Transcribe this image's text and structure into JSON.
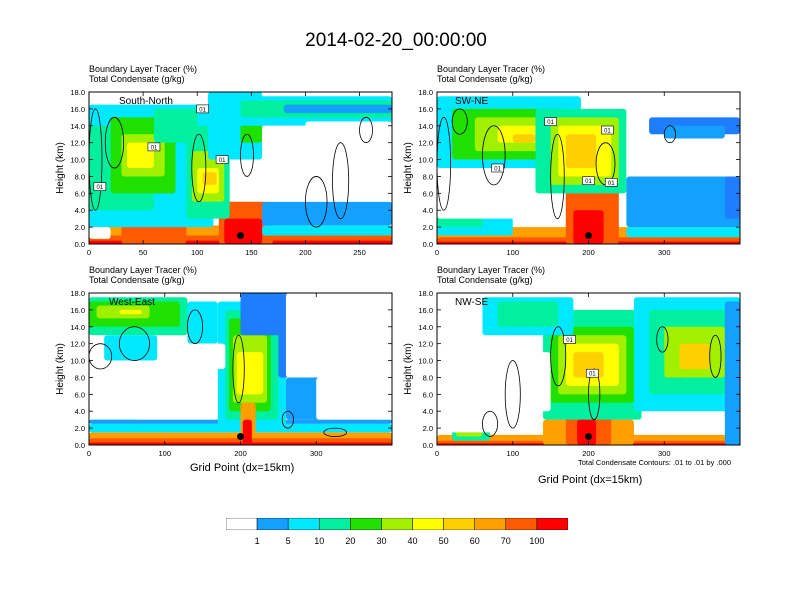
{
  "title": "2014-02-20_00:00:00",
  "panel_header_line1": "Boundary Layer Tracer   (%)",
  "panel_header_line2": "Total Condensate   (g/kg)",
  "y_axis_label": "Height (km)",
  "x_axis_label": "Grid Point (dx=15km)",
  "footnote": "Total Condensate Contours: .01 to .01 by .000",
  "contour_label": "01",
  "colors": [
    "#ffffff",
    "#1f7dff",
    "#14a0ff",
    "#00e8ff",
    "#00f0a0",
    "#20e000",
    "#a0f000",
    "#ffff00",
    "#ffd000",
    "#ffa000",
    "#ff5a00",
    "#ff0000"
  ],
  "colorbar_labels": [
    "1",
    "5",
    "10",
    "20",
    "30",
    "40",
    "50",
    "60",
    "70",
    "100"
  ],
  "chart_data": [
    {
      "type": "heatmap",
      "panel": "South-North",
      "title": "South-North",
      "ylabel": "Height (km)",
      "xlabel": "",
      "xlim": [
        0,
        280
      ],
      "ylim": [
        0,
        18
      ],
      "x_ticks": [
        0,
        50,
        100,
        150,
        200,
        250
      ],
      "y_ticks": [
        0,
        2,
        4,
        6,
        8,
        10,
        12,
        14,
        16,
        18
      ],
      "y_tick_labels": [
        "0.0",
        "2.0",
        "4.0",
        "6.0",
        "8.0",
        "10.0",
        "12.0",
        "14.0",
        "16.0",
        "18.0"
      ],
      "marker": [
        140,
        1.0
      ]
    },
    {
      "type": "heatmap",
      "panel": "SW-NE",
      "title": "SW-NE",
      "ylabel": "Height (km)",
      "xlabel": "",
      "xlim": [
        0,
        400
      ],
      "ylim": [
        0,
        18
      ],
      "x_ticks": [
        0,
        100,
        200,
        300
      ],
      "y_ticks": [
        0,
        2,
        4,
        6,
        8,
        10,
        12,
        14,
        16,
        18
      ],
      "y_tick_labels": [
        "0.0",
        "2.0",
        "4.0",
        "6.0",
        "8.0",
        "10.0",
        "12.0",
        "14.0",
        "16.0",
        "18.0"
      ],
      "marker": [
        200,
        1.0
      ]
    },
    {
      "type": "heatmap",
      "panel": "West-East",
      "title": "West-East",
      "ylabel": "Height (km)",
      "xlabel": "Grid Point (dx=15km)",
      "xlim": [
        0,
        400
      ],
      "ylim": [
        0,
        18
      ],
      "x_ticks": [
        0,
        100,
        200,
        300
      ],
      "y_ticks": [
        0,
        2,
        4,
        6,
        8,
        10,
        12,
        14,
        16,
        18
      ],
      "y_tick_labels": [
        "0.0",
        "2.0",
        "4.0",
        "6.0",
        "8.0",
        "10.0",
        "12.0",
        "14.0",
        "16.0",
        "18.0"
      ],
      "marker": [
        200,
        1.0
      ]
    },
    {
      "type": "heatmap",
      "panel": "NW-SE",
      "title": "NW-SE",
      "ylabel": "Height (km)",
      "xlabel": "Grid Point (dx=15km)",
      "xlim": [
        0,
        400
      ],
      "ylim": [
        0,
        18
      ],
      "x_ticks": [
        0,
        100,
        200,
        300
      ],
      "y_ticks": [
        0,
        2,
        4,
        6,
        8,
        10,
        12,
        14,
        16,
        18
      ],
      "y_tick_labels": [
        "0.0",
        "2.0",
        "4.0",
        "6.0",
        "8.0",
        "10.0",
        "12.0",
        "14.0",
        "16.0",
        "18.0"
      ],
      "marker": [
        200,
        1.0
      ]
    }
  ]
}
